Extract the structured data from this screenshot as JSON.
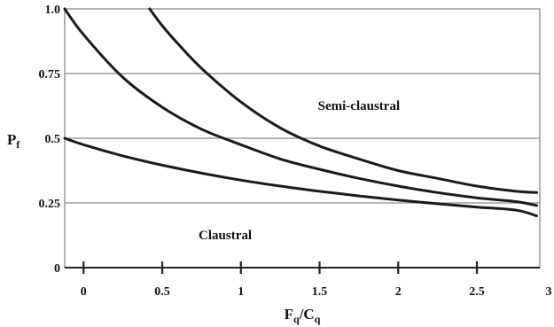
{
  "chart_data": {
    "type": "line",
    "title": "",
    "xlabel": {
      "main": "F",
      "sub1": "q",
      "sep": "/C",
      "sub2": "q"
    },
    "ylabel": {
      "main": "P",
      "sub": "f"
    },
    "xlim": [
      -0.12,
      2.9
    ],
    "ylim": [
      0,
      1.0
    ],
    "x_ticks": [
      {
        "value": 0,
        "label": "0"
      },
      {
        "value": 0.5,
        "label": "0.5"
      },
      {
        "value": 1,
        "label": "1"
      },
      {
        "value": 1.5,
        "label": "1.5"
      },
      {
        "value": 2,
        "label": "2"
      },
      {
        "value": 2.5,
        "label": "2.5"
      },
      {
        "value": 3,
        "label": "3"
      }
    ],
    "y_ticks": [
      {
        "value": 0,
        "label": "0"
      },
      {
        "value": 0.25,
        "label": "0.25"
      },
      {
        "value": 0.5,
        "label": "0.5"
      },
      {
        "value": 0.75,
        "label": "0.75"
      },
      {
        "value": 1.0,
        "label": "1.0"
      }
    ],
    "grid": "horizontal",
    "annotations": [
      {
        "text": "Semi-claustral",
        "x": 1.75,
        "y": 0.61
      },
      {
        "text": "Claustral",
        "x": 0.9,
        "y": 0.11
      }
    ],
    "series": [
      {
        "x": [
          -0.12,
          0,
          0.25,
          0.5,
          0.75,
          1.0,
          1.25,
          1.5,
          1.75,
          2.0,
          2.25,
          2.5,
          2.75,
          2.88
        ],
        "values": [
          0.5,
          0.475,
          0.432,
          0.396,
          0.365,
          0.338,
          0.315,
          0.295,
          0.277,
          0.261,
          0.247,
          0.234,
          0.222,
          0.2
        ]
      },
      {
        "x": [
          -0.12,
          0,
          0.25,
          0.5,
          0.75,
          1.0,
          1.25,
          1.5,
          1.75,
          2.0,
          2.25,
          2.5,
          2.75,
          2.88
        ],
        "values": [
          1.0,
          0.9,
          0.735,
          0.62,
          0.535,
          0.475,
          0.42,
          0.38,
          0.345,
          0.315,
          0.29,
          0.27,
          0.255,
          0.24
        ]
      },
      {
        "x": [
          0.42,
          0.5,
          0.6,
          0.75,
          1.0,
          1.25,
          1.5,
          1.75,
          2.0,
          2.25,
          2.5,
          2.75,
          2.88
        ],
        "values": [
          1.0,
          0.935,
          0.865,
          0.77,
          0.64,
          0.54,
          0.47,
          0.42,
          0.375,
          0.345,
          0.315,
          0.295,
          0.29
        ]
      }
    ]
  }
}
